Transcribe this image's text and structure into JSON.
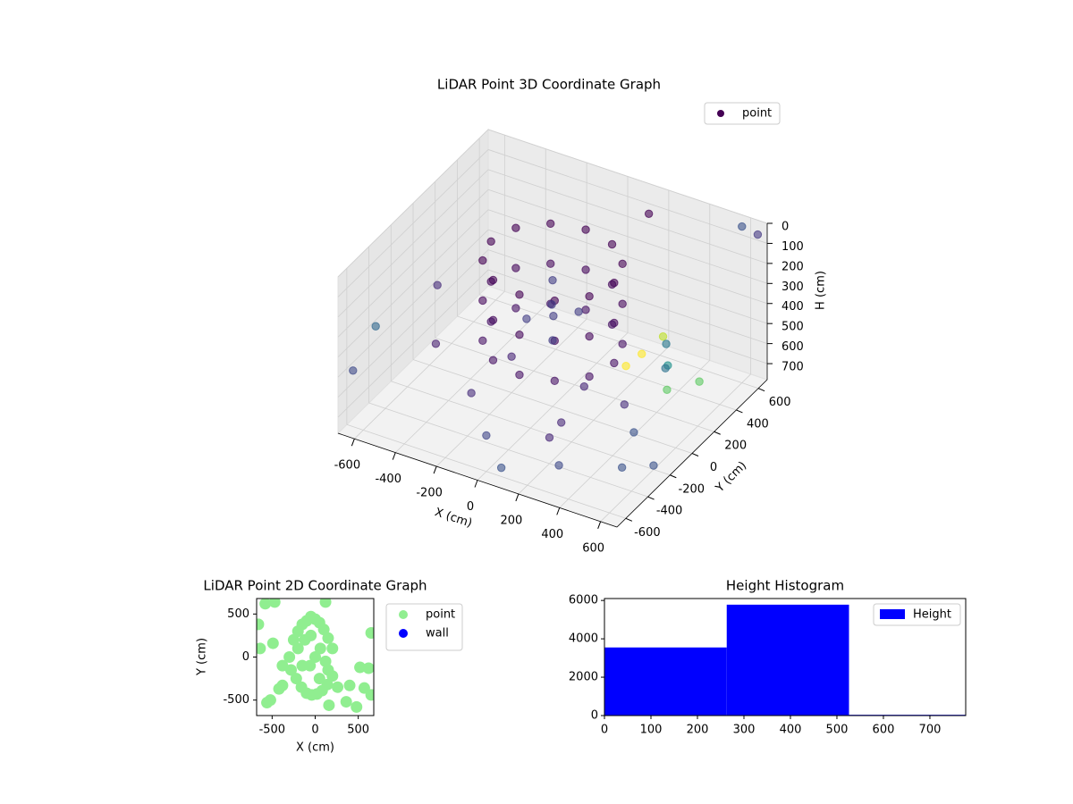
{
  "chart_data": [
    {
      "type": "scatter3d",
      "title": "LiDAR Point 3D Coordinate Graph",
      "xlabel": "X (cm)",
      "ylabel": "Y (cm)",
      "zlabel": "H (cm)",
      "xlim": [
        -680,
        680
      ],
      "ylim": [
        -680,
        680
      ],
      "zlim": [
        780,
        0
      ],
      "xticks": [
        -600,
        -400,
        -200,
        0,
        200,
        400,
        600
      ],
      "yticks": [
        -600,
        -400,
        -200,
        0,
        200,
        400,
        600
      ],
      "zticks": [
        0,
        100,
        200,
        300,
        400,
        500,
        600,
        700
      ],
      "grid": true,
      "legend": "upper right",
      "series": [
        {
          "name": "point",
          "color": "#440154",
          "x": [
            300,
            260,
            150,
            0,
            -150,
            -260,
            -300,
            -260,
            -150,
            0,
            150,
            260,
            300,
            260,
            150,
            0,
            -150,
            -260,
            -300,
            -260,
            -150,
            0,
            150,
            260,
            300,
            260,
            150,
            0,
            -150,
            -260,
            -300,
            -260,
            -150,
            0,
            150,
            260,
            0,
            100,
            -100,
            50,
            -50,
            0,
            -650,
            -620,
            200,
            500,
            600,
            650,
            400,
            450,
            350,
            300,
            250,
            450,
            500,
            -300,
            -100,
            0,
            100,
            -400,
            200,
            300,
            600,
            150,
            -200,
            350,
            100,
            550,
            500
          ],
          "y": [
            0,
            150,
            260,
            300,
            260,
            150,
            0,
            -150,
            -260,
            -300,
            -260,
            -150,
            0,
            150,
            260,
            300,
            260,
            150,
            0,
            -150,
            -260,
            -300,
            -260,
            -150,
            0,
            150,
            260,
            300,
            260,
            150,
            0,
            -150,
            -260,
            -300,
            -260,
            -150,
            0,
            50,
            -50,
            -100,
            100,
            0,
            -600,
            -450,
            500,
            400,
            600,
            650,
            300,
            200,
            350,
            250,
            200,
            -100,
            -300,
            -500,
            -550,
            -600,
            -650,
            -300,
            -400,
            -500,
            -200,
            -200,
            0,
            0,
            100,
            0,
            100
          ],
          "z": [
            60,
            60,
            60,
            60,
            60,
            60,
            60,
            60,
            60,
            60,
            60,
            60,
            260,
            260,
            260,
            260,
            260,
            260,
            260,
            260,
            260,
            260,
            260,
            260,
            460,
            460,
            460,
            460,
            460,
            460,
            460,
            460,
            460,
            460,
            460,
            460,
            150,
            300,
            350,
            200,
            400,
            450,
            500,
            350,
            20,
            700,
            0,
            50,
            600,
            650,
            500,
            550,
            600,
            700,
            750,
            300,
            450,
            600,
            700,
            150,
            650,
            700,
            760,
            700,
            600,
            650,
            700,
            400,
            350
          ],
          "colors": [
            "#440154",
            "#440154",
            "#440154",
            "#440154",
            "#440154",
            "#440154",
            "#440154",
            "#440154",
            "#440154",
            "#440154",
            "#440154",
            "#440154",
            "#46085c",
            "#46085c",
            "#46085c",
            "#46085c",
            "#46085c",
            "#46085c",
            "#46085c",
            "#46085c",
            "#46085c",
            "#46085c",
            "#46085c",
            "#46085c",
            "#471365",
            "#471365",
            "#471365",
            "#471365",
            "#471365",
            "#471365",
            "#471365",
            "#471365",
            "#471365",
            "#471365",
            "#471365",
            "#471365",
            "#433e85",
            "#433e85",
            "#433e85",
            "#433e85",
            "#433e85",
            "#433e85",
            "#3e4a89",
            "#31688e",
            "#440154",
            "#5ec962",
            "#3b528b",
            "#443983",
            "#21918c",
            "#5ec962",
            "#bddf26",
            "#fde725",
            "#fde725",
            "#3b528b",
            "#3b528b",
            "#481f70",
            "#472d7b",
            "#404688",
            "#3b528b",
            "#472d7b",
            "#482878",
            "#3e4a89",
            "#3b528b",
            "#482878",
            "#482576",
            "#472d7b",
            "#482878",
            "#2c728e",
            "#2a788e"
          ]
        }
      ]
    },
    {
      "type": "scatter",
      "title": "LiDAR Point 2D Coordinate Graph",
      "xlabel": "X (cm)",
      "ylabel": "Y (cm)",
      "xlim": [
        -680,
        680
      ],
      "ylim": [
        -680,
        680
      ],
      "xticks": [
        -500,
        0,
        500
      ],
      "yticks": [
        -500,
        0,
        500
      ],
      "legend": "outside upper right",
      "series": [
        {
          "name": "point",
          "color": "#90ee90",
          "x": [
            -300,
            -250,
            -200,
            -150,
            -100,
            -50,
            0,
            50,
            100,
            150,
            200,
            -280,
            -220,
            -160,
            -100,
            -40,
            20,
            80,
            140,
            200,
            -200,
            -120,
            -60,
            0,
            60,
            120,
            -150,
            -50,
            50,
            150,
            -380,
            260,
            -580,
            -470,
            120,
            -660,
            -640,
            -490,
            650,
            620,
            520,
            570,
            650,
            400,
            360,
            160,
            -380,
            -420,
            -520,
            480,
            -560
          ],
          "y": [
            0,
            200,
            300,
            380,
            420,
            470,
            440,
            400,
            320,
            220,
            100,
            -150,
            -250,
            -350,
            -420,
            -440,
            -430,
            -390,
            -320,
            -220,
            100,
            200,
            -100,
            0,
            100,
            -50,
            -100,
            250,
            -250,
            -150,
            -100,
            -350,
            620,
            640,
            640,
            380,
            100,
            160,
            280,
            -130,
            -120,
            -360,
            -440,
            -330,
            -520,
            -560,
            -330,
            -370,
            -500,
            -580,
            -530
          ]
        },
        {
          "name": "wall",
          "color": "#0000ff",
          "x": [],
          "y": []
        }
      ]
    },
    {
      "type": "histogram",
      "title": "Height Histogram",
      "name": "Height",
      "color": "#0000ff",
      "bins": [
        0,
        263,
        526,
        789
      ],
      "values": [
        3550,
        5780,
        40
      ],
      "xlim": [
        0,
        777
      ],
      "ylim": [
        0,
        6100
      ],
      "xticks": [
        0,
        100,
        200,
        300,
        400,
        500,
        600,
        700
      ],
      "yticks": [
        0,
        2000,
        4000,
        6000
      ],
      "legend": "upper right"
    }
  ]
}
